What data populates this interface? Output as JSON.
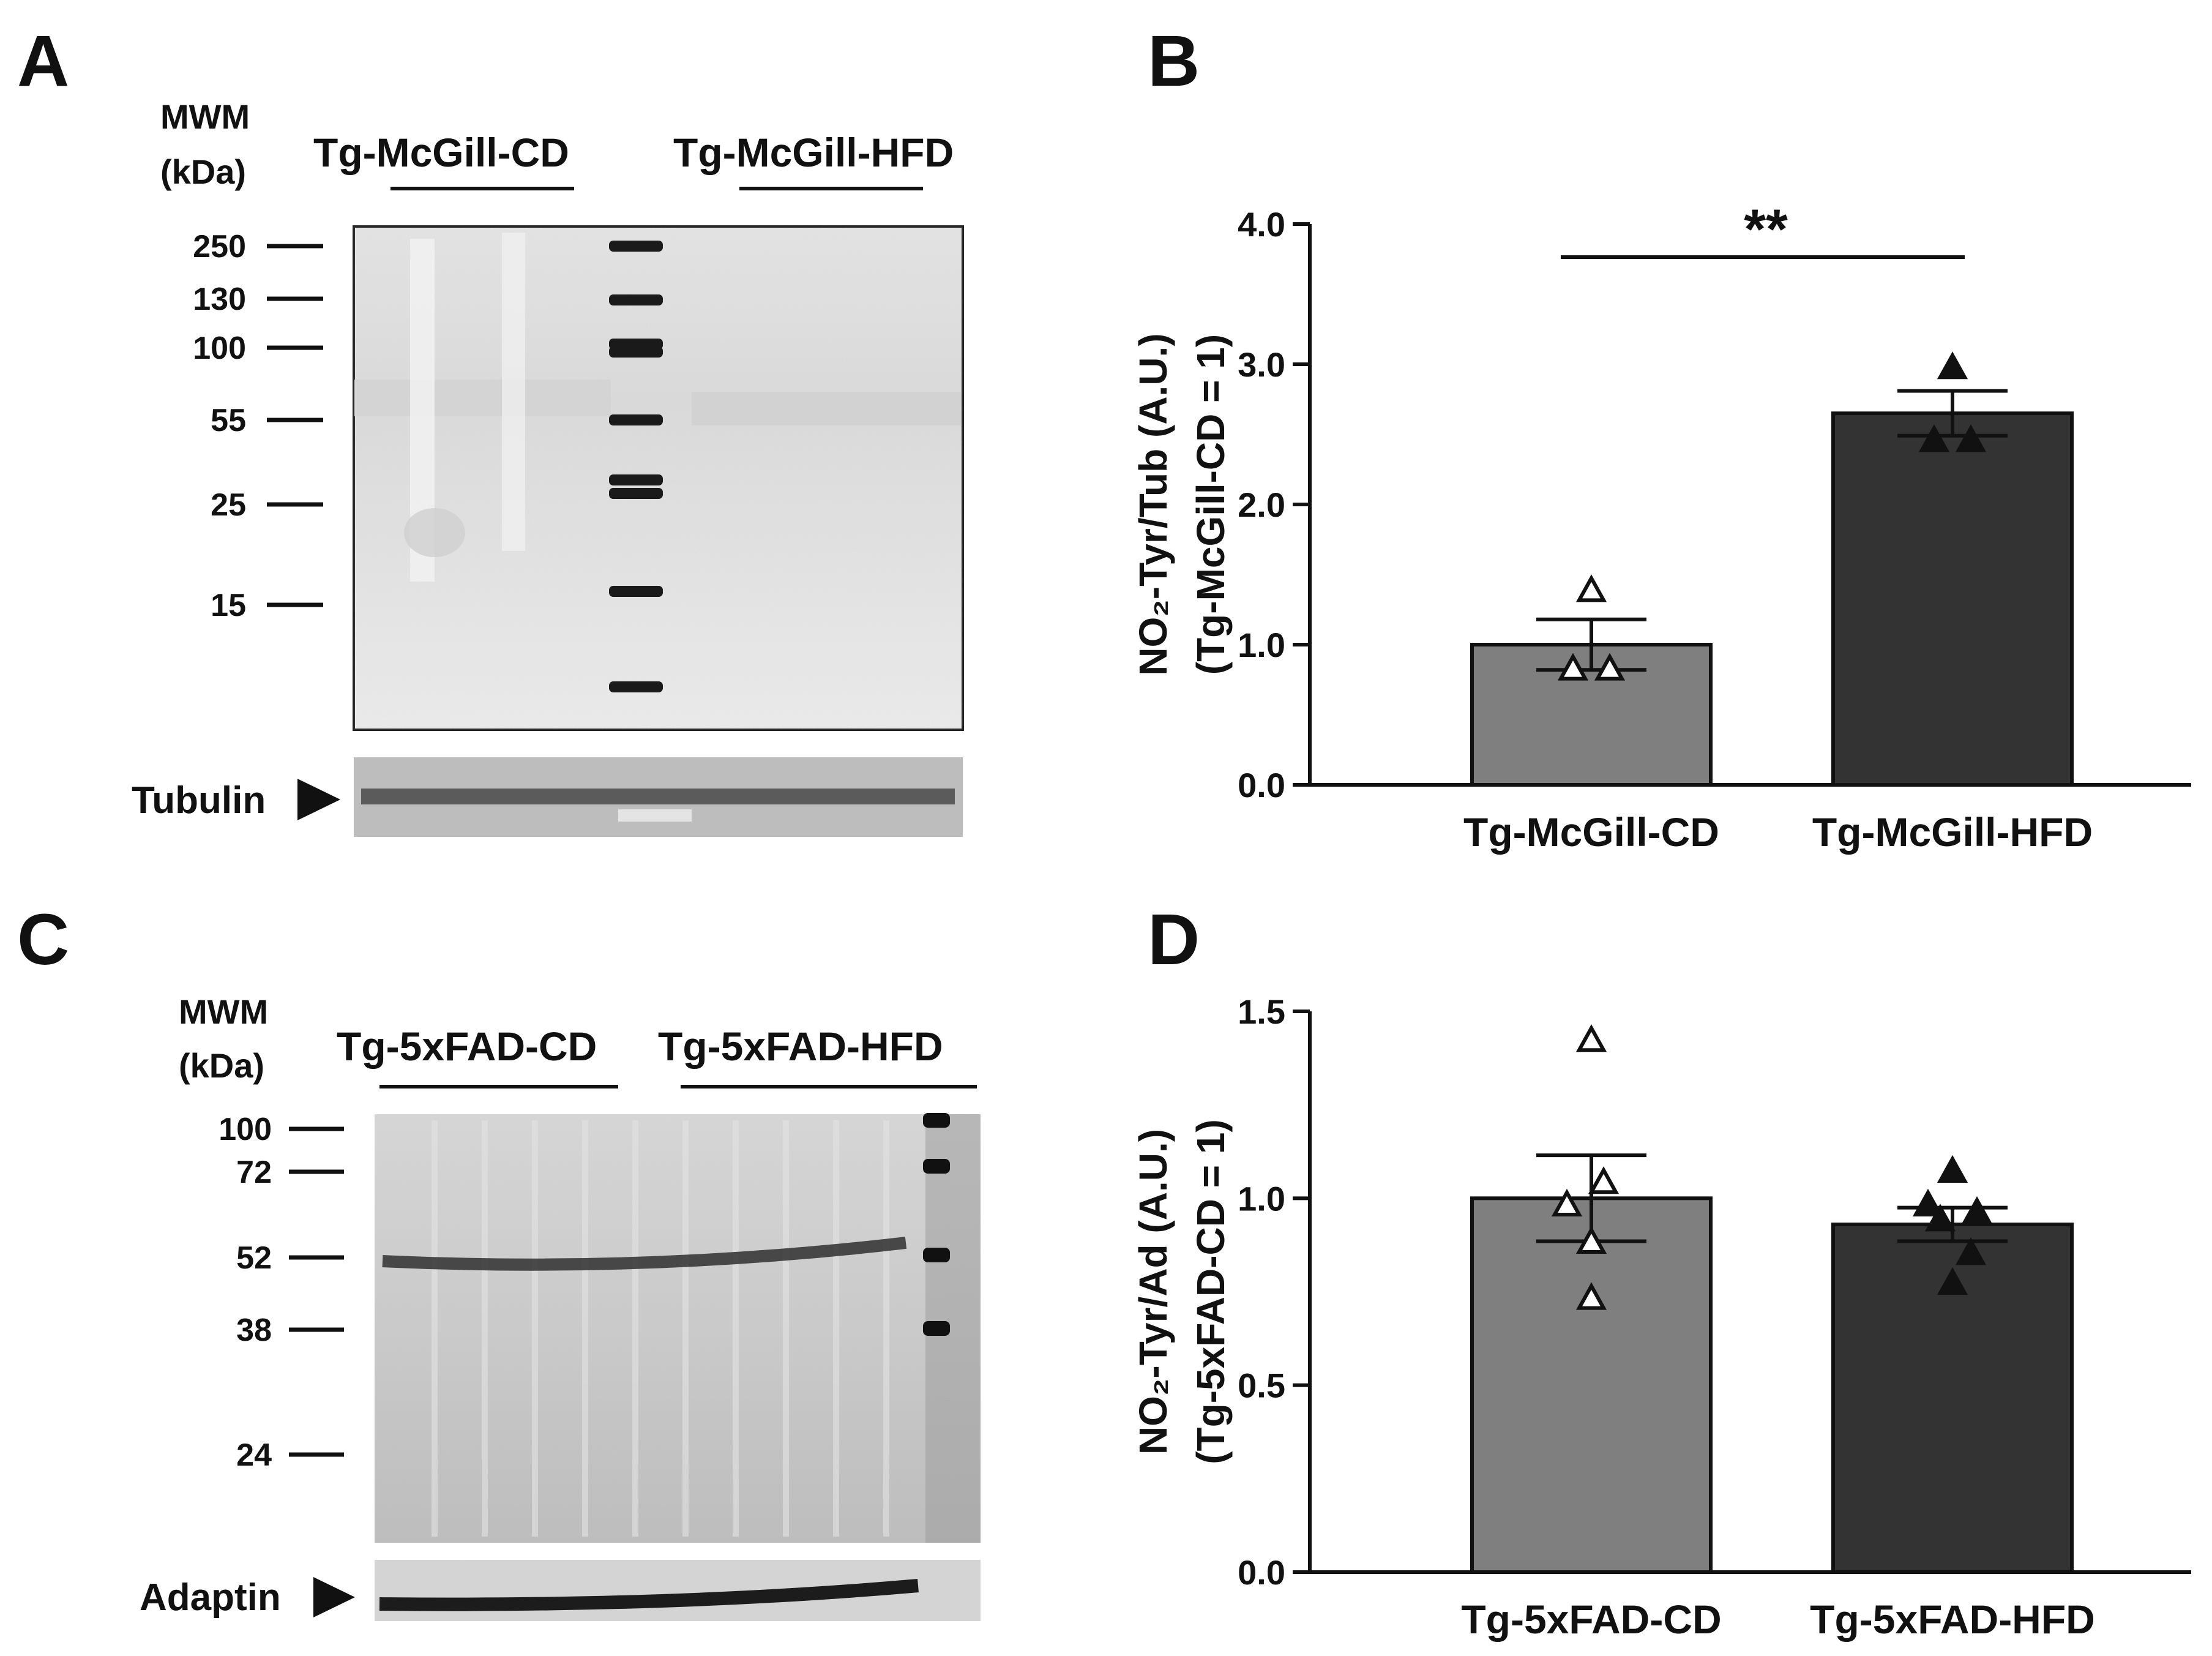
{
  "panels": {
    "a": {
      "letter": "A",
      "mwm_line1": "MWM",
      "mwm_line2": "(kDa)",
      "group1": "Tg-McGill-CD",
      "group2": "Tg-McGill-HFD",
      "mw_markers": [
        "250",
        "130",
        "100",
        "55",
        "25",
        "15"
      ],
      "loading_control": "Tubulin"
    },
    "b": {
      "letter": "B"
    },
    "c": {
      "letter": "C",
      "mwm_line1": "MWM",
      "mwm_line2": "(kDa)",
      "group1": "Tg-5xFAD-CD",
      "group2": "Tg-5xFAD-HFD",
      "mw_markers": [
        "100",
        "72",
        "52",
        "38",
        "24"
      ],
      "loading_control": "Adaptin"
    },
    "d": {
      "letter": "D"
    }
  },
  "colors": {
    "cd_bar": "#7f7f7f",
    "hfd_bar": "#333333",
    "line": "#111111"
  },
  "chart_data": [
    {
      "panel": "B",
      "type": "bar",
      "categories": [
        "Tg-McGill-CD",
        "Tg-McGill-HFD"
      ],
      "values": [
        1.0,
        2.65
      ],
      "sem": [
        0.18,
        0.16
      ],
      "points": [
        [
          1.38,
          0.82,
          0.82
        ],
        [
          2.97,
          2.45,
          2.45
        ]
      ],
      "marker": [
        "open-triangle",
        "filled-triangle"
      ],
      "ylabel_line1": "NO₂-Tyr/Tub (A.U.)",
      "ylabel_line2": "(Tg-McGill-CD = 1)",
      "ylim": [
        0,
        4.0
      ],
      "yticks": [
        "0.0",
        "1.0",
        "2.0",
        "3.0",
        "4.0"
      ],
      "significance": "**"
    },
    {
      "panel": "D",
      "type": "bar",
      "categories": [
        "Tg-5xFAD-CD",
        "Tg-5xFAD-HFD"
      ],
      "values": [
        1.0,
        0.93
      ],
      "sem": [
        0.115,
        0.045
      ],
      "points": [
        [
          1.42,
          1.04,
          0.98,
          0.88,
          0.73
        ],
        [
          1.07,
          0.98,
          0.96,
          0.94,
          0.85,
          0.77
        ]
      ],
      "marker": [
        "open-triangle",
        "filled-triangle"
      ],
      "ylabel_line1": "NO₂-Tyr/Ad (A.U.)",
      "ylabel_line2": "(Tg-5xFAD-CD = 1)",
      "ylim": [
        0,
        1.5
      ],
      "yticks": [
        "0.0",
        "0.5",
        "1.0",
        "1.5"
      ],
      "significance": ""
    }
  ]
}
